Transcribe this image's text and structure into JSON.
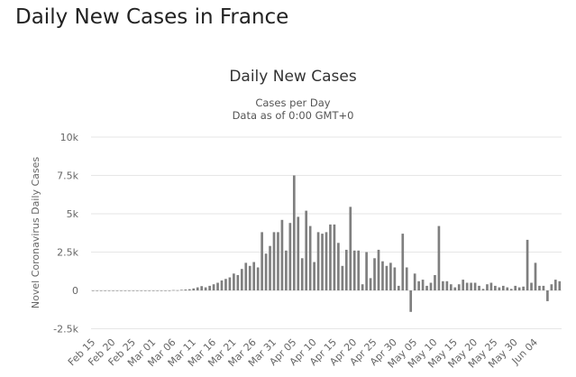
{
  "page": {
    "title": "Daily New Cases in France"
  },
  "chart_data": {
    "type": "bar",
    "title": "Daily New Cases",
    "subtitle_lines": [
      "Cases per Day",
      "Data as of 0:00 GMT+0"
    ],
    "xlabel": "",
    "ylabel": "Novel Coronavirus Daily Cases",
    "ylim": [
      -2500,
      10000
    ],
    "yticks": [
      10000,
      7500,
      5000,
      2500,
      0,
      -2500
    ],
    "ytick_labels": [
      "10k",
      "7.5k",
      "5k",
      "2.5k",
      "0",
      "-2.5k"
    ],
    "grid": true,
    "legend": "none",
    "bar_color": "#7f7f7f",
    "start_date": "Feb 15",
    "xtick_labels": [
      "Feb 15",
      "Feb 20",
      "Feb 25",
      "Mar 01",
      "Mar 06",
      "Mar 11",
      "Mar 16",
      "Mar 21",
      "Mar 26",
      "Mar 31",
      "Apr 05",
      "Apr 10",
      "Apr 15",
      "Apr 20",
      "Apr 25",
      "Apr 30",
      "May 05",
      "May 10",
      "May 15",
      "May 20",
      "May 25",
      "May 30",
      "Jun 04"
    ],
    "values": [
      0,
      0,
      0,
      0,
      0,
      0,
      0,
      0,
      0,
      0,
      0,
      0,
      0,
      0,
      0,
      0,
      0,
      0,
      0,
      0,
      20,
      10,
      40,
      60,
      80,
      130,
      200,
      280,
      200,
      300,
      400,
      500,
      650,
      750,
      850,
      1100,
      1000,
      1400,
      1800,
      1600,
      1850,
      1500,
      3800,
      2400,
      2900,
      3800,
      3800,
      4600,
      2600,
      4400,
      7500,
      4800,
      2100,
      5200,
      4200,
      1850,
      3800,
      3700,
      3800,
      4300,
      4300,
      3100,
      1600,
      2650,
      5450,
      2600,
      2600,
      400,
      2500,
      800,
      2100,
      2650,
      1900,
      1600,
      1800,
      1500,
      300,
      3700,
      1500,
      -1400,
      1100,
      600,
      700,
      300,
      500,
      1000,
      4200,
      600,
      600,
      400,
      200,
      400,
      700,
      500,
      500,
      500,
      300,
      100,
      400,
      500,
      300,
      200,
      300,
      200,
      100,
      300,
      200,
      250,
      3300,
      500,
      1800,
      300,
      300,
      -700,
      400,
      700,
      600
    ]
  }
}
